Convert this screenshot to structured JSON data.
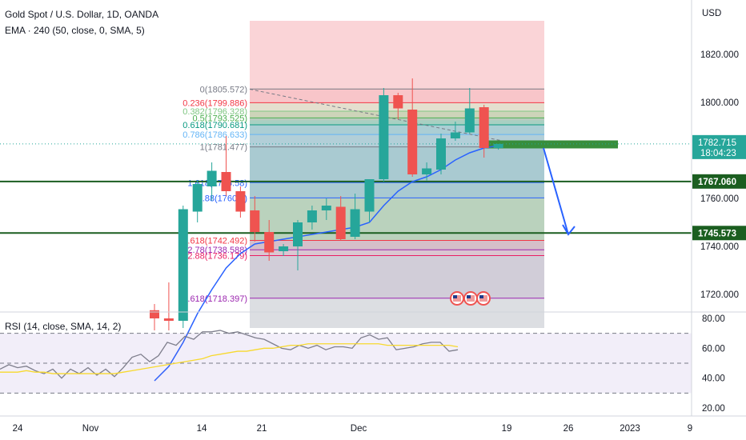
{
  "header": {
    "symbol_title": "Gold Spot / U.S. Dollar, 1D, OANDA",
    "ema_legend": "EMA · 240 (50, close, 0, SMA, 5)",
    "rsi_legend": "RSI (14, close, SMA, 14, 2)"
  },
  "colors": {
    "up": "#26a69a",
    "down": "#ef5350",
    "ema": "#2962ff",
    "rsi": "#7e7e8c",
    "rsi_ma": "#f7d92e",
    "level_line": "#1b5e20",
    "target_bar": "#388e3c",
    "projection": "#2962ff",
    "price_line": "#26a69a"
  },
  "chart_data": [
    {
      "type": "candlestick",
      "title": "Gold Spot / U.S. Dollar, 1D, OANDA",
      "currency": "USD",
      "ylim": [
        1706,
        1834
      ],
      "y_ticks": [
        "1820.000",
        "1800.000",
        "1780.000",
        "1760.000",
        "1740.000",
        "1720.000"
      ],
      "x_ticks": [
        "24",
        "Nov",
        "14",
        "21",
        "Dec",
        "19",
        "26",
        "2023",
        "9"
      ],
      "grid": false,
      "candles": [
        {
          "o": 1713.4,
          "h": 1716.0,
          "l": 1705.0,
          "c": 1710.0
        },
        {
          "o": 1710.0,
          "h": 1725.0,
          "l": 1705.0,
          "c": 1709.0
        },
        {
          "o": 1709.0,
          "h": 1757.0,
          "l": 1706.0,
          "c": 1755.5
        },
        {
          "o": 1754.5,
          "h": 1767.5,
          "l": 1750.0,
          "c": 1766.0
        },
        {
          "o": 1765.0,
          "h": 1775.0,
          "l": 1759.0,
          "c": 1771.5
        },
        {
          "o": 1771.0,
          "h": 1786.0,
          "l": 1761.0,
          "c": 1763.0
        },
        {
          "o": 1763.0,
          "h": 1765.0,
          "l": 1752.0,
          "c": 1754.5
        },
        {
          "o": 1755.0,
          "h": 1761.0,
          "l": 1742.0,
          "c": 1746.0
        },
        {
          "o": 1746.0,
          "h": 1751.0,
          "l": 1734.0,
          "c": 1737.5
        },
        {
          "o": 1738.0,
          "h": 1741.0,
          "l": 1736.0,
          "c": 1740.0
        },
        {
          "o": 1740.0,
          "h": 1751.0,
          "l": 1730.0,
          "c": 1750.0
        },
        {
          "o": 1750.0,
          "h": 1757.0,
          "l": 1747.0,
          "c": 1755.0
        },
        {
          "o": 1755.0,
          "h": 1760.0,
          "l": 1751.0,
          "c": 1757.0
        },
        {
          "o": 1756.5,
          "h": 1761.0,
          "l": 1742.5,
          "c": 1743.0
        },
        {
          "o": 1744.0,
          "h": 1762.0,
          "l": 1743.0,
          "c": 1755.5
        },
        {
          "o": 1754.5,
          "h": 1768.0,
          "l": 1750.0,
          "c": 1768.0
        },
        {
          "o": 1768.0,
          "h": 1806.0,
          "l": 1767.0,
          "c": 1803.0
        },
        {
          "o": 1803.0,
          "h": 1804.0,
          "l": 1793.0,
          "c": 1797.5
        },
        {
          "o": 1797.0,
          "h": 1810.0,
          "l": 1769.0,
          "c": 1770.0
        },
        {
          "o": 1770.0,
          "h": 1775.0,
          "l": 1767.5,
          "c": 1772.5
        },
        {
          "o": 1772.0,
          "h": 1787.0,
          "l": 1770.0,
          "c": 1785.0
        },
        {
          "o": 1785.0,
          "h": 1792.0,
          "l": 1784.0,
          "c": 1787.5
        },
        {
          "o": 1787.5,
          "h": 1806.0,
          "l": 1787.0,
          "c": 1797.5
        },
        {
          "o": 1798.0,
          "h": 1799.0,
          "l": 1777.0,
          "c": 1781.0
        },
        {
          "o": 1781.0,
          "h": 1782.7,
          "l": 1780.3,
          "c": 1782.7
        }
      ],
      "ema": [
        1684,
        1690,
        1700,
        1712,
        1722,
        1731,
        1737,
        1741,
        1742,
        1743,
        1744,
        1745,
        1746,
        1747,
        1748,
        1750,
        1757,
        1763,
        1767,
        1769,
        1772,
        1776,
        1779,
        1781,
        1782
      ],
      "highlight_zone_top": 1834,
      "highlight_zone_bottom": 1792.5,
      "shaded_range": [
        1706,
        1792.5
      ],
      "fib_levels": [
        {
          "label": "0(1805.572)",
          "value": 1805.572,
          "color": "#787b86"
        },
        {
          "label": "0.236(1799.886)",
          "value": 1799.886,
          "color": "#f23645"
        },
        {
          "label": "0.382(1796.328)",
          "value": 1796.328,
          "color": "#81c784"
        },
        {
          "label": "0.5(1793.525)",
          "value": 1793.525,
          "color": "#4caf50"
        },
        {
          "label": "0.618(1790.681)",
          "value": 1790.681,
          "color": "#089981"
        },
        {
          "label": "0.786(1786.633)",
          "value": 1786.633,
          "color": "#64b5f6"
        },
        {
          "label": "1(1781.477)",
          "value": 1781.477,
          "color": "#787b86"
        },
        {
          "label": "1.618(1766.58)",
          "value": 1766.58,
          "color": "#2962ff"
        },
        {
          "label": "1.88(1760.2)",
          "value": 1760.2,
          "color": "#2962ff"
        },
        {
          "label": "2.618(1742.492)",
          "value": 1742.492,
          "color": "#f23645"
        },
        {
          "label": "2.78(1738.588)",
          "value": 1738.588,
          "color": "#9c27b0"
        },
        {
          "label": "2.88(1736.179)",
          "value": 1736.179,
          "color": "#e91e63"
        },
        {
          "label": "3.618(1718.397)",
          "value": 1718.397,
          "color": "#9c27b0"
        }
      ],
      "horizontal_levels": [
        {
          "value": 1767.06,
          "label": "1767.060"
        },
        {
          "value": 1745.573,
          "label": "1745.573"
        }
      ],
      "target_zone": 1782.5,
      "projection_path": [
        1781.0,
        1745.0
      ],
      "last_price": {
        "value": 1782.715,
        "label": "1782.715",
        "countdown": "18:04:23"
      }
    },
    {
      "type": "line",
      "title": "RSI (14, close, SMA, 14, 2)",
      "ylim": [
        15,
        85
      ],
      "y_ticks": [
        "80.00",
        "60.00",
        "40.00",
        "20.00"
      ],
      "bands": [
        70,
        50,
        30
      ],
      "series": [
        {
          "values": [
            46,
            49,
            47,
            48,
            45,
            43,
            46,
            40,
            46,
            43,
            47,
            42,
            46,
            41,
            47,
            54,
            56,
            51,
            55,
            64,
            62,
            68,
            66,
            71,
            71,
            72,
            70,
            71,
            69,
            67,
            66,
            63,
            60,
            59,
            62,
            60,
            62,
            59,
            61,
            61,
            60,
            67,
            69,
            66,
            67,
            59,
            60,
            61,
            63,
            64,
            64,
            58,
            59
          ]
        },
        {
          "values": [
            44,
            44,
            44,
            45,
            44,
            44,
            43,
            43,
            43,
            43,
            43,
            43,
            43,
            43,
            44,
            45,
            46,
            47,
            48,
            49,
            50,
            51,
            52,
            53,
            55,
            56,
            57,
            58,
            58,
            59,
            60,
            60,
            61,
            62,
            62,
            63,
            63,
            63,
            63,
            63,
            63,
            63,
            63,
            63,
            62,
            62,
            62,
            62,
            62,
            62,
            62,
            62,
            61
          ]
        }
      ]
    }
  ]
}
